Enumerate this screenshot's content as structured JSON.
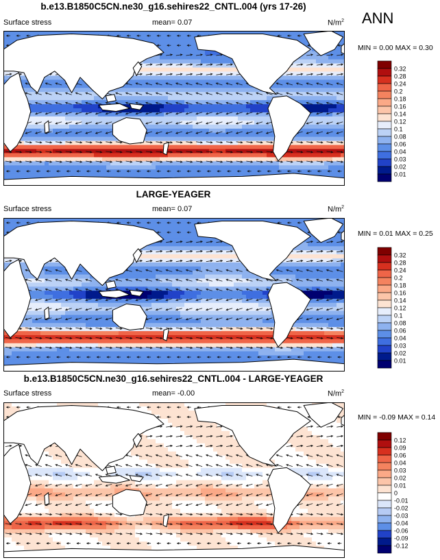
{
  "season": "ANN",
  "colors": {
    "land": "#ffffff",
    "outline": "#000000",
    "arrow": "#111111"
  },
  "chart_data": [
    {
      "type": "heatmap",
      "title": "b.e13.B1850C5CN.ne30_g16.sehires22_CNTL.004 (yrs 17-26)",
      "variable": "Surface stress",
      "mean_text": "mean=  0.07",
      "units_base": "N/m",
      "units_sup": "2",
      "minmax_text": "MIN =  0.00 MAX =  0.30",
      "field": "model",
      "levels": [
        "0.32",
        "0.28",
        "0.24",
        "0.2",
        "0.18",
        "0.16",
        "0.14",
        "0.12",
        "0.1",
        "0.08",
        "0.06",
        "0.04",
        "0.03",
        "0.02",
        "0.01"
      ],
      "colors": [
        "#7f0000",
        "#b00f0f",
        "#d7301f",
        "#ef6548",
        "#f4835f",
        "#fba987",
        "#fcc5a9",
        "#fde3d2",
        "#e7eefc",
        "#bcd2f6",
        "#8eb2ef",
        "#5d8fe7",
        "#3f6fe0",
        "#2142c8",
        "#001a8c",
        "#000070"
      ]
    },
    {
      "type": "heatmap",
      "title": "LARGE-YEAGER",
      "variable": "Surface stress",
      "mean_text": "mean=  0.07",
      "units_base": "N/m",
      "units_sup": "2",
      "minmax_text": "MIN =  0.01 MAX =  0.25",
      "field": "obs",
      "levels": [
        "0.32",
        "0.28",
        "0.24",
        "0.2",
        "0.18",
        "0.16",
        "0.14",
        "0.12",
        "0.1",
        "0.08",
        "0.06",
        "0.04",
        "0.03",
        "0.02",
        "0.01"
      ],
      "colors": [
        "#7f0000",
        "#b00f0f",
        "#d7301f",
        "#ef6548",
        "#f4835f",
        "#fba987",
        "#fcc5a9",
        "#fde3d2",
        "#e7eefc",
        "#bcd2f6",
        "#8eb2ef",
        "#5d8fe7",
        "#3f6fe0",
        "#2142c8",
        "#001a8c",
        "#000070"
      ]
    },
    {
      "type": "heatmap",
      "title": "b.e13.B1850C5CN.ne30_g16.sehires22_CNTL.004 - LARGE-YEAGER",
      "variable": "Surface stress",
      "mean_text": "mean=  -0.00",
      "units_base": "N/m",
      "units_sup": "2",
      "minmax_text": "MIN = -0.09 MAX =  0.14",
      "field": "diff",
      "levels": [
        "0.12",
        "0.09",
        "0.06",
        "0.04",
        "0.03",
        "0.02",
        "0.01",
        "0",
        "-0.01",
        "-0.02",
        "-0.03",
        "-0.04",
        "-0.06",
        "-0.09",
        "-0.12"
      ],
      "colors": [
        "#7f0000",
        "#b00f0f",
        "#d7301f",
        "#ef6548",
        "#f4835f",
        "#fba987",
        "#fcc5a9",
        "#fde3d2",
        "#ffffff",
        "#dbe6fa",
        "#b6cbf4",
        "#8eb2ef",
        "#5d8fe7",
        "#2142c8",
        "#001a8c",
        "#000070"
      ]
    }
  ]
}
